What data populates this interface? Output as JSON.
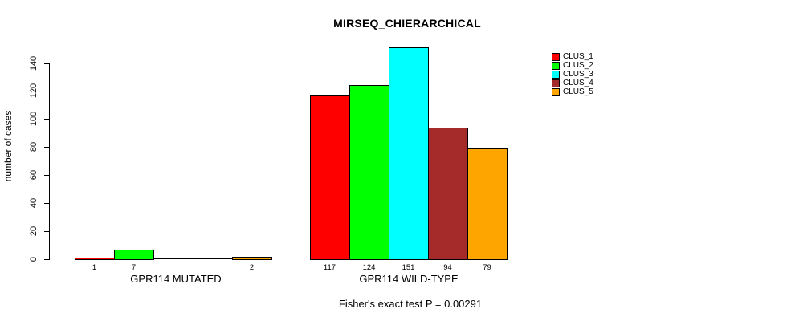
{
  "chart_data": {
    "type": "bar",
    "title": "MIRSEQ_CHIERARCHICAL",
    "ylabel": "number of cases",
    "footnote": "Fisher's exact test P = 0.00291",
    "categories": [
      "GPR114 MUTATED",
      "GPR114 WILD-TYPE"
    ],
    "series": [
      {
        "name": "CLUS_1",
        "color": "#ff0000",
        "values": [
          1,
          117
        ]
      },
      {
        "name": "CLUS_2",
        "color": "#00ff00",
        "values": [
          7,
          124
        ]
      },
      {
        "name": "CLUS_3",
        "color": "#00ffff",
        "values": [
          0,
          151
        ]
      },
      {
        "name": "CLUS_4",
        "color": "#a52a2a",
        "values": [
          0,
          94
        ]
      },
      {
        "name": "CLUS_5",
        "color": "#ffa500",
        "values": [
          2,
          79
        ]
      }
    ],
    "yticks": [
      0,
      20,
      40,
      60,
      80,
      100,
      120,
      140
    ],
    "ylim": [
      0,
      151
    ],
    "grid": false,
    "legend_position": "right",
    "bar_value_labels_shown": true,
    "zero_values_unlabeled": true
  },
  "colors": {
    "background": "#ffffff",
    "axis": "#000000",
    "text": "#000000"
  }
}
